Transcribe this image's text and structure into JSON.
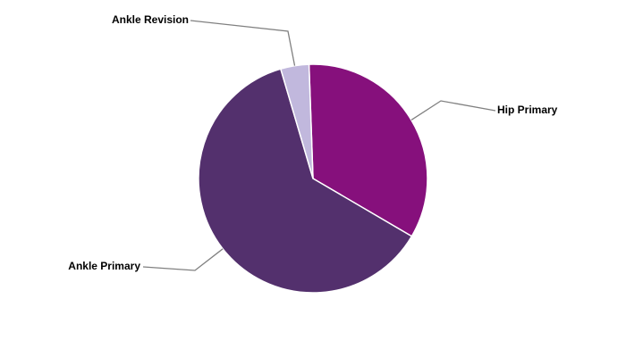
{
  "chart_data": {
    "type": "pie",
    "categories": [
      "Hip Primary",
      "Ankle Primary",
      "Ankle Revision"
    ],
    "values": [
      34,
      62,
      4
    ],
    "colors": [
      "#86107c",
      "#53306d",
      "#c1b8dd"
    ]
  }
}
